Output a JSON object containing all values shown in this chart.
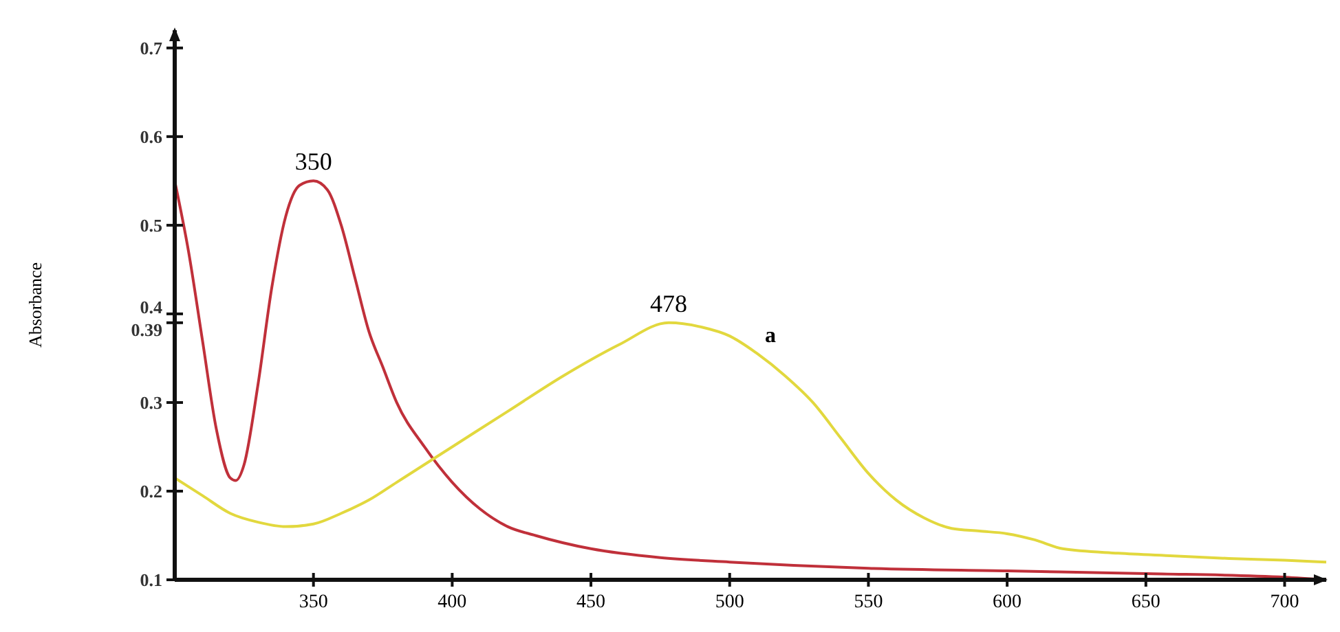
{
  "chart_data": {
    "type": "line",
    "ylabel": "Absorbance",
    "xlim": [
      300,
      715
    ],
    "xticks": [
      350,
      400,
      450,
      500,
      550,
      600,
      650,
      700
    ],
    "ylim": [
      0.1,
      0.72
    ],
    "yticks": [
      0.1,
      0.2,
      0.3,
      0.39,
      0.4,
      0.5,
      0.6,
      0.7
    ],
    "grid": false,
    "marker": "none",
    "line_style": "solid",
    "series": [
      {
        "color": "#c0303a",
        "x": [
          300,
          305,
          310,
          315,
          320,
          322,
          325,
          330,
          335,
          340,
          345,
          350,
          355,
          360,
          365,
          370,
          375,
          380,
          390,
          400,
          410,
          420,
          430,
          450,
          475,
          500,
          550,
          600,
          650,
          700,
          715
        ],
        "values": [
          0.55,
          0.47,
          0.37,
          0.27,
          0.215,
          0.212,
          0.23,
          0.32,
          0.43,
          0.51,
          0.545,
          0.55,
          0.54,
          0.5,
          0.44,
          0.38,
          0.34,
          0.3,
          0.25,
          0.21,
          0.18,
          0.16,
          0.15,
          0.135,
          0.125,
          0.12,
          0.113,
          0.11,
          0.107,
          0.103,
          0.1
        ]
      },
      {
        "name": "a",
        "color": "#e2d83e",
        "x": [
          300,
          310,
          320,
          330,
          340,
          350,
          360,
          370,
          380,
          390,
          400,
          420,
          440,
          460,
          478,
          490,
          500,
          510,
          520,
          530,
          540,
          550,
          560,
          570,
          580,
          590,
          600,
          610,
          620,
          640,
          660,
          680,
          700,
          715
        ],
        "values": [
          0.215,
          0.195,
          0.175,
          0.165,
          0.16,
          0.163,
          0.175,
          0.19,
          0.21,
          0.23,
          0.25,
          0.29,
          0.33,
          0.365,
          0.39,
          0.385,
          0.375,
          0.355,
          0.33,
          0.3,
          0.26,
          0.22,
          0.19,
          0.17,
          0.158,
          0.155,
          0.152,
          0.145,
          0.135,
          0.13,
          0.127,
          0.124,
          0.122,
          0.12
        ]
      }
    ],
    "annotations": [
      {
        "text": "350",
        "x": 350,
        "y": 0.55
      },
      {
        "text": "478",
        "x": 478,
        "y": 0.39
      }
    ]
  }
}
